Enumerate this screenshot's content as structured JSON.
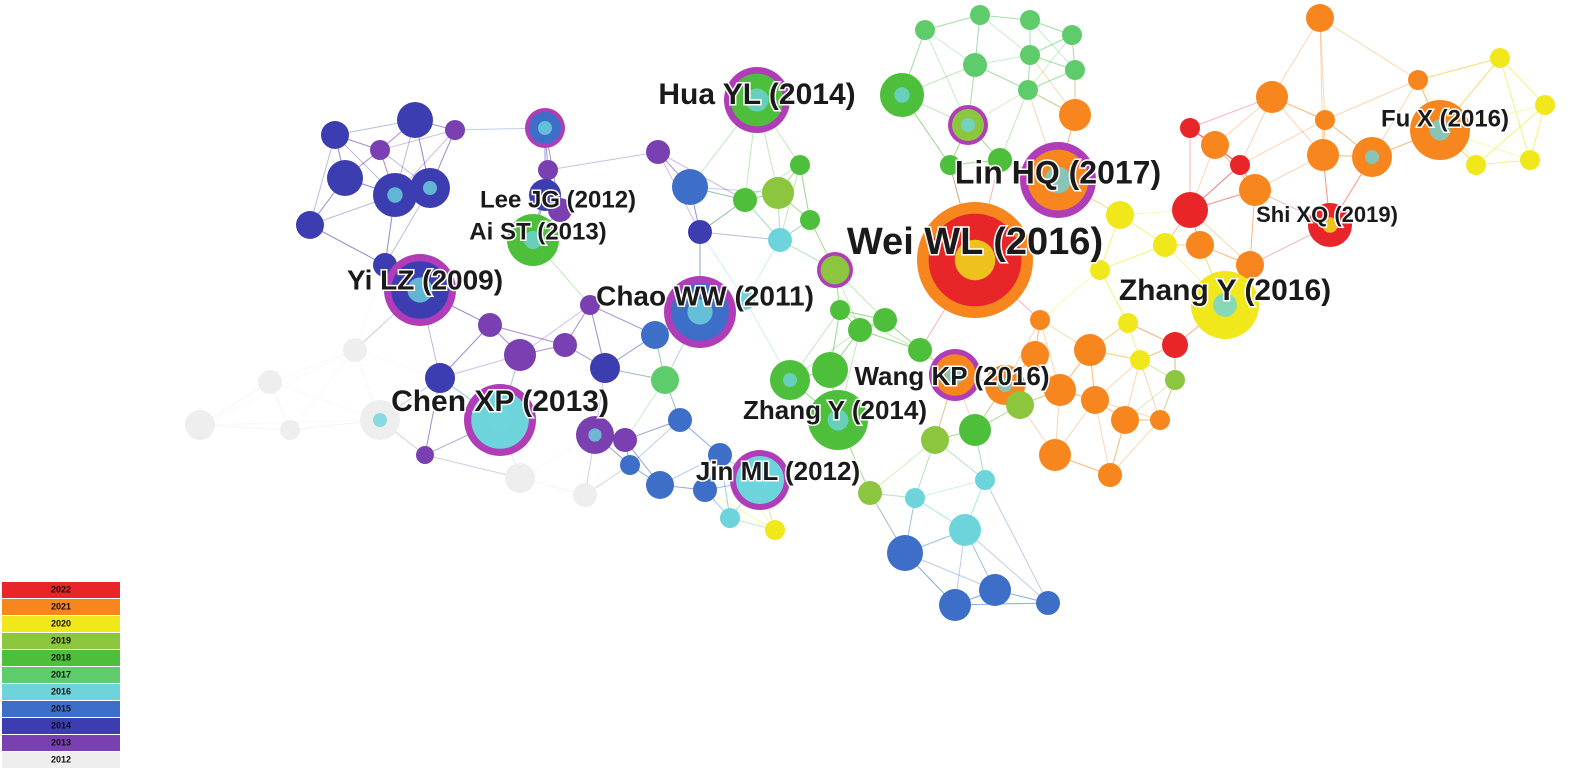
{
  "nodes": [
    {
      "label": "Hua YL (2014)"
    },
    {
      "label": "Lee JG (2012)"
    },
    {
      "label": "Ai ST (2013)"
    },
    {
      "label": "Yi LZ (2009)"
    },
    {
      "label": "Chao WW (2011)"
    },
    {
      "label": "Chen XP (2013)"
    },
    {
      "label": "Jin ML (2012)"
    },
    {
      "label": "Zhang Y (2014)"
    },
    {
      "label": "Wang KP (2016)"
    },
    {
      "label": "Wei WL (2016)"
    },
    {
      "label": "Lin HQ (2017)"
    },
    {
      "label": "Fu X (2016)"
    },
    {
      "label": "Shi XQ (2019)"
    },
    {
      "label": "Zhang Y (2016)"
    }
  ],
  "legend": {
    "items": [
      {
        "label": "2022",
        "color": "#e8262a"
      },
      {
        "label": "2021",
        "color": "#f7861e"
      },
      {
        "label": "2020",
        "color": "#f0e81a"
      },
      {
        "label": "2019",
        "color": "#8cc63f"
      },
      {
        "label": "2018",
        "color": "#4dbf3a"
      },
      {
        "label": "2017",
        "color": "#5ecc6a"
      },
      {
        "label": "2016",
        "color": "#6dd4dc"
      },
      {
        "label": "2015",
        "color": "#3d6fc8"
      },
      {
        "label": "2014",
        "color": "#3b3db0"
      },
      {
        "label": "2013",
        "color": "#7a3fb0"
      },
      {
        "label": "2012",
        "color": "#eeeeee"
      }
    ]
  }
}
